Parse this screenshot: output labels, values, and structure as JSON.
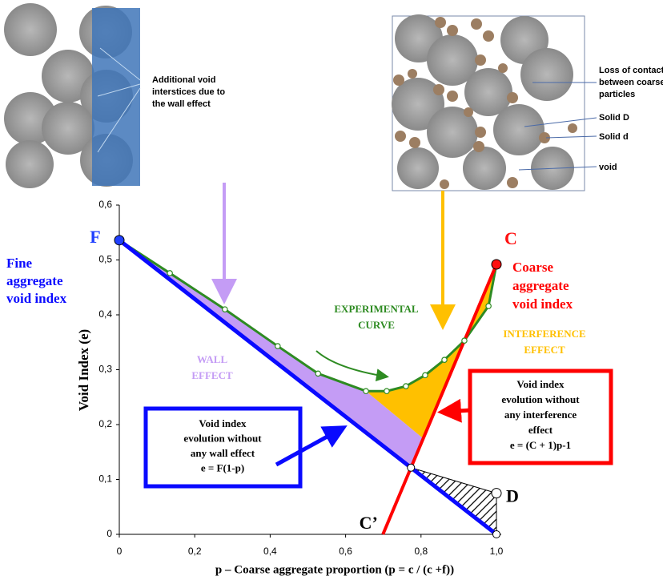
{
  "chart_data": {
    "type": "line",
    "x_label": "p – Coarse aggregate proportion (p = c / (c +f))",
    "y_label": "Void Index (e)",
    "xlim": [
      0,
      1
    ],
    "ylim": [
      0,
      0.6
    ],
    "xticks": [
      0,
      {
        "value": 0.2,
        "label": "0,2"
      },
      {
        "value": 0.4,
        "label": "0,4"
      },
      {
        "value": 0.6,
        "label": "0,6"
      },
      {
        "value": 0.8,
        "label": "0,8"
      },
      {
        "value": 1,
        "label": "1,0"
      }
    ],
    "yticks": [
      0,
      {
        "value": 0.1,
        "label": "0,1"
      },
      {
        "value": 0.2,
        "label": "0,2"
      },
      {
        "value": 0.3,
        "label": "0,3"
      },
      {
        "value": 0.4,
        "label": "0,4"
      },
      {
        "value": 0.5,
        "label": "0,5"
      },
      {
        "value": 0.6,
        "label": "0,6"
      }
    ],
    "series": [
      {
        "color": "#2e8b22",
        "x": [
          0,
          0.134,
          0.28,
          0.42,
          0.527,
          0.654,
          0.709,
          0.76,
          0.811,
          0.862,
          0.915,
          0.979,
          1
        ],
        "values": [
          0.536,
          0.476,
          0.41,
          0.343,
          0.293,
          0.261,
          0.261,
          0.27,
          0.29,
          0.318,
          0.353,
          0.416,
          0.492
        ]
      },
      {
        "color": "#0a0aff",
        "x": [
          0,
          1
        ],
        "values": [
          0.536,
          0
        ]
      },
      {
        "color": "#ff0000",
        "x": [
          0.699,
          1
        ],
        "values": [
          0,
          0.492
        ]
      }
    ],
    "points": [
      {
        "label": "F",
        "x": 0,
        "y": 0.536,
        "color": "#1f3fff",
        "marker": true
      },
      {
        "label": "C",
        "x": 1,
        "y": 0.492,
        "color": "#ff1010",
        "marker": true
      },
      {
        "label": "C’",
        "x": 0.699,
        "y": 0,
        "color": "#000000",
        "marker": false
      },
      {
        "label": "D",
        "x": 1,
        "y": 0.075,
        "color": "#ffffff",
        "marker": true
      }
    ],
    "annotations": [
      {
        "lines": [
          "Fine",
          "aggregate",
          "void index"
        ],
        "color": "#0a0aff"
      },
      {
        "lines": [
          "Coarse",
          "aggregate",
          "void index"
        ],
        "color": "#ff0000"
      },
      {
        "lines": [
          "EXPERIMENTAL",
          "CURVE"
        ],
        "color": "#2e8b22"
      },
      {
        "lines": [
          "WALL",
          "EFFECT"
        ],
        "color": "#c49cf5"
      },
      {
        "lines": [
          "INTERFERENCE",
          "EFFECT"
        ],
        "color": "#ffc000"
      },
      {
        "lines": [
          "Void index",
          "evolution without",
          "any wall effect",
          "e = F(1-p)"
        ],
        "color": "#0a0aff"
      },
      {
        "lines": [
          "Void index",
          "evolution without",
          "any interference",
          "effect",
          "e = (C + 1)p-1"
        ],
        "color": "#ff0000"
      },
      {
        "lines": [
          "Additional void",
          "interstices due to",
          "the wall effect"
        ],
        "color": "#000000"
      },
      {
        "lines": [
          "Loss of contact",
          "between coarse",
          "particles"
        ],
        "color": "#000000"
      },
      {
        "lines": [
          "Solid D"
        ],
        "color": "#000000"
      },
      {
        "lines": [
          "Solid d"
        ],
        "color": "#000000"
      },
      {
        "lines": [
          "void"
        ],
        "color": "#000000"
      }
    ]
  }
}
